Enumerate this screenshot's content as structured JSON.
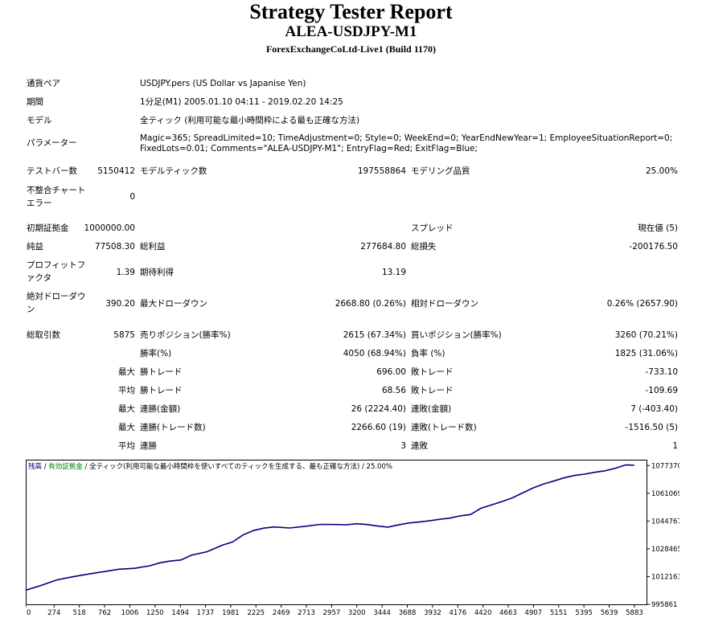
{
  "header": {
    "title": "Strategy Tester Report",
    "subtitle": "ALEA-USDJPY-M1",
    "server": "ForexExchangeCoLtd-Live1 (Build 1170)"
  },
  "settings": {
    "symbol_label": "通貨ペア",
    "symbol_value": "USDJPY.pers (US Dollar vs Japanise Yen)",
    "period_label": "期間",
    "period_value": "1分足(M1) 2005.01.10 04:11 - 2019.02.20 14:25",
    "model_label": "モデル",
    "model_value": "全ティック (利用可能な最小時間枠による最も正確な方法)",
    "params_label": "パラメーター",
    "params_line1": "Magic=365; SpreadLimited=10; TimeAdjustment=0; Style=0; WeekEnd=0; YearEndNewYear=1; EmployeeSituationReport=0;",
    "params_line2": "FixedLots=0.01; Comments=\"ALEA-USDJPY-M1\"; EntryFlag=Red; ExitFlag=Blue;"
  },
  "stats": {
    "bars_label": "テストバー数",
    "bars_value": "5150412",
    "ticks_label": "モデルティック数",
    "ticks_value": "197558864",
    "quality_label": "モデリング品質",
    "quality_value": "25.00%",
    "mismatch_label": "不整合チャートエラー",
    "mismatch_value": "0",
    "deposit_label": "初期証拠金",
    "deposit_value": "1000000.00",
    "spread_label": "スプレッド",
    "spread_value": "現在値 (5)",
    "net_label": "純益",
    "net_value": "77508.30",
    "gross_profit_label": "総利益",
    "gross_profit_value": "277684.80",
    "gross_loss_label": "総損失",
    "gross_loss_value": "-200176.50",
    "pf_label": "プロフィットファクタ",
    "pf_value": "1.39",
    "expected_label": "期待利得",
    "expected_value": "13.19",
    "abs_dd_label": "絶対ドローダウン",
    "abs_dd_value": "390.20",
    "max_dd_label": "最大ドローダウン",
    "max_dd_value": "2668.80 (0.26%)",
    "rel_dd_label": "相対ドローダウン",
    "rel_dd_value": "0.26% (2657.90)",
    "trades_label": "総取引数",
    "trades_value": "5875",
    "short_label": "売りポジション(勝率%)",
    "short_value": "2615 (67.34%)",
    "long_label": "買いポジション(勝率%)",
    "long_value": "3260 (70.21%)",
    "win_rate_label": "勝率(%)",
    "win_rate_value": "4050 (68.94%)",
    "loss_rate_label": "負率 (%)",
    "loss_rate_value": "1825 (31.06%)",
    "max_label": "最大",
    "avg_label": "平均",
    "lw_label": "勝トレード",
    "lw_value": "696.00",
    "ll_label": "敗トレード",
    "ll_value": "-733.10",
    "aw_label": "勝トレード",
    "aw_value": "68.56",
    "al_label": "敗トレード",
    "al_value": "-109.69",
    "mcw_label": "連勝(金額)",
    "mcw_value": "26 (2224.40)",
    "mcl_label": "連敗(金額)",
    "mcl_value": "7 (-403.40)",
    "mcp_label": "連勝(トレード数)",
    "mcp_value": "2266.60 (19)",
    "mcpl_label": "連敗(トレード数)",
    "mcpl_value": "-1516.50 (5)",
    "acw_label": "連勝",
    "acw_value": "3",
    "acl_label": "連敗",
    "acl_value": "1"
  },
  "chart_legend": {
    "balance": "残高",
    "sep1": " / ",
    "equity": "有効証拠金",
    "sep2": " / ",
    "rest": "全ティック(利用可能な最小時間枠を使いすべてのティックを生成する、最も正確な方法) / 25.00%",
    "balance_color": "#000080",
    "equity_color": "#008000"
  },
  "chart_data": {
    "type": "line",
    "x_ticks": [
      0,
      274,
      518,
      762,
      1006,
      1250,
      1494,
      1737,
      1981,
      2225,
      2469,
      2713,
      2957,
      3200,
      3444,
      3688,
      3932,
      4176,
      4420,
      4663,
      4907,
      5151,
      5395,
      5639,
      5883
    ],
    "y_ticks": [
      995861,
      1012163,
      1028465,
      1044767,
      1061069,
      1077370
    ],
    "xlim": [
      0,
      6000
    ],
    "ylim": [
      995861,
      1080800
    ],
    "series": [
      {
        "color": "#000080",
        "x": [
          0,
          150,
          300,
          450,
          600,
          750,
          900,
          1050,
          1200,
          1300,
          1400,
          1500,
          1600,
          1750,
          1900,
          2000,
          2100,
          2200,
          2300,
          2400,
          2550,
          2700,
          2850,
          3000,
          3100,
          3200,
          3300,
          3400,
          3500,
          3600,
          3700,
          3800,
          3900,
          4000,
          4100,
          4200,
          4300,
          4400,
          4500,
          4600,
          4700,
          4800,
          4900,
          5000,
          5100,
          5200,
          5300,
          5400,
          5500,
          5600,
          5700,
          5800,
          5883
        ],
        "y": [
          1004100,
          1007000,
          1010200,
          1012000,
          1013600,
          1015000,
          1016500,
          1017000,
          1018500,
          1020300,
          1021300,
          1021900,
          1024700,
          1026700,
          1030600,
          1032500,
          1036600,
          1039200,
          1040600,
          1041300,
          1040700,
          1041700,
          1042800,
          1042700,
          1042600,
          1043200,
          1042700,
          1041800,
          1041200,
          1042500,
          1043600,
          1044200,
          1044900,
          1045800,
          1046500,
          1047800,
          1048600,
          1052300,
          1054200,
          1056100,
          1058300,
          1061200,
          1064100,
          1066400,
          1068200,
          1070100,
          1071500,
          1072300,
          1073400,
          1074300,
          1075800,
          1077800,
          1077500
        ]
      }
    ]
  }
}
